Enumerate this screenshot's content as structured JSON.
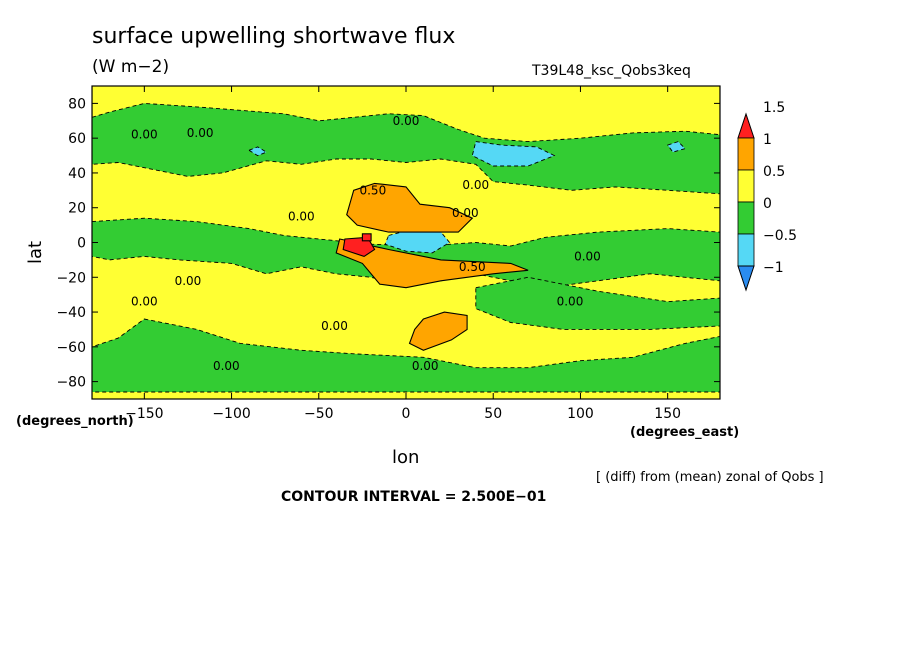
{
  "chart_data": {
    "type": "heatmap",
    "title": "surface upwelling shortwave flux",
    "units": "(W m−2)",
    "run_name": "T39L48_ksc_Qobs3keq",
    "xlabel": "lon",
    "ylabel": "lat",
    "x_units_label": "(degrees_east)",
    "y_units_label": "(degrees_north)",
    "xlim": [
      -180,
      180
    ],
    "ylim": [
      -90,
      90
    ],
    "x_ticks": [
      -150,
      -100,
      -50,
      0,
      50,
      100,
      150
    ],
    "y_ticks": [
      -80,
      -60,
      -40,
      -20,
      0,
      20,
      40,
      60,
      80
    ],
    "x_tick_labels": [
      "−150",
      "−100",
      "−50",
      "0",
      "50",
      "100",
      "150"
    ],
    "y_tick_labels": [
      "−80",
      "−60",
      "−40",
      "−20",
      "0",
      "20",
      "40",
      "60",
      "80"
    ],
    "note": "[ (diff) from (mean) zonal of Qobs ]",
    "contour_interval_text": "CONTOUR INTERVAL = 2.500E−01",
    "colorbar": {
      "levels": [
        -1,
        -0.5,
        0,
        0.5,
        1,
        1.5
      ],
      "level_labels": [
        "−1",
        "−0.5",
        "0",
        "0.5",
        "1",
        "1.5"
      ],
      "colors": [
        "#2a8cf0",
        "#55d8f5",
        "#33cc33",
        "#ffff33",
        "#ffa500",
        "#ff2020"
      ]
    },
    "contour_labels": [
      {
        "lon": -150,
        "lat": 62,
        "text": "0.00"
      },
      {
        "lon": -118,
        "lat": 63,
        "text": "0.00"
      },
      {
        "lon": 0,
        "lat": 70,
        "text": "0.00"
      },
      {
        "lon": -19,
        "lat": 30,
        "text": "0.50"
      },
      {
        "lon": 40,
        "lat": 33,
        "text": "0.00"
      },
      {
        "lon": 34,
        "lat": 17,
        "text": "0.00"
      },
      {
        "lon": -60,
        "lat": 15,
        "text": "0.00"
      },
      {
        "lon": 38,
        "lat": -14,
        "text": "0.50"
      },
      {
        "lon": 104,
        "lat": -8,
        "text": "0.00"
      },
      {
        "lon": -125,
        "lat": -22,
        "text": "0.00"
      },
      {
        "lon": -150,
        "lat": -34,
        "text": "0.00"
      },
      {
        "lon": 94,
        "lat": -34,
        "text": "0.00"
      },
      {
        "lon": -41,
        "lat": -48,
        "text": "0.00"
      },
      {
        "lon": 11,
        "lat": -71,
        "text": "0.00"
      },
      {
        "lon": -103,
        "lat": -71,
        "text": "0.00"
      }
    ],
    "regions": [
      {
        "level": 0,
        "poly": [
          [
            -180,
            90
          ],
          [
            180,
            90
          ],
          [
            180,
            -90
          ],
          [
            -180,
            -90
          ]
        ]
      },
      {
        "level": -0.5,
        "poly": [
          [
            -180,
            72
          ],
          [
            -170,
            75
          ],
          [
            -150,
            80
          ],
          [
            -120,
            78
          ],
          [
            -95,
            76
          ],
          [
            -70,
            74
          ],
          [
            -50,
            70
          ],
          [
            -30,
            72
          ],
          [
            -10,
            74
          ],
          [
            10,
            73
          ],
          [
            30,
            65
          ],
          [
            45,
            60
          ],
          [
            70,
            58
          ],
          [
            100,
            60
          ],
          [
            130,
            63
          ],
          [
            160,
            64
          ],
          [
            180,
            62
          ],
          [
            180,
            28
          ],
          [
            150,
            30
          ],
          [
            120,
            32
          ],
          [
            95,
            30
          ],
          [
            70,
            33
          ],
          [
            50,
            35
          ],
          [
            40,
            45
          ],
          [
            20,
            48
          ],
          [
            0,
            46
          ],
          [
            -20,
            48
          ],
          [
            -40,
            48
          ],
          [
            -60,
            45
          ],
          [
            -80,
            47
          ],
          [
            -105,
            40
          ],
          [
            -125,
            38
          ],
          [
            -150,
            43
          ],
          [
            -165,
            46
          ],
          [
            -180,
            45
          ]
        ]
      },
      {
        "level": -0.5,
        "poly": [
          [
            -180,
            12
          ],
          [
            -150,
            14
          ],
          [
            -120,
            12
          ],
          [
            -90,
            8
          ],
          [
            -70,
            4
          ],
          [
            -50,
            2
          ],
          [
            -20,
            -1
          ],
          [
            10,
            -2
          ],
          [
            40,
            0
          ],
          [
            60,
            -2
          ],
          [
            80,
            3
          ],
          [
            110,
            6
          ],
          [
            150,
            8
          ],
          [
            180,
            6
          ],
          [
            180,
            -22
          ],
          [
            160,
            -20
          ],
          [
            140,
            -18
          ],
          [
            110,
            -22
          ],
          [
            80,
            -26
          ],
          [
            60,
            -22
          ],
          [
            40,
            -18
          ],
          [
            20,
            -22
          ],
          [
            0,
            -25
          ],
          [
            -20,
            -20
          ],
          [
            -40,
            -18
          ],
          [
            -60,
            -14
          ],
          [
            -80,
            -18
          ],
          [
            -100,
            -12
          ],
          [
            -130,
            -10
          ],
          [
            -150,
            -8
          ],
          [
            -170,
            -10
          ],
          [
            -180,
            -8
          ]
        ]
      },
      {
        "level": -0.5,
        "poly": [
          [
            -150,
            -44
          ],
          [
            -120,
            -50
          ],
          [
            -95,
            -58
          ],
          [
            -60,
            -62
          ],
          [
            -30,
            -64
          ],
          [
            10,
            -66
          ],
          [
            40,
            -72
          ],
          [
            70,
            -72
          ],
          [
            100,
            -68
          ],
          [
            130,
            -66
          ],
          [
            160,
            -58
          ],
          [
            180,
            -54
          ],
          [
            180,
            -86
          ],
          [
            -180,
            -86
          ],
          [
            -180,
            -60
          ],
          [
            -165,
            -55
          ]
        ]
      },
      {
        "level": -0.5,
        "poly": [
          [
            40,
            -26
          ],
          [
            70,
            -20
          ],
          [
            110,
            -28
          ],
          [
            150,
            -34
          ],
          [
            180,
            -32
          ],
          [
            180,
            -48
          ],
          [
            140,
            -50
          ],
          [
            90,
            -50
          ],
          [
            60,
            -46
          ],
          [
            40,
            -38
          ]
        ]
      },
      {
        "level": -1,
        "poly": [
          [
            40,
            58
          ],
          [
            55,
            56
          ],
          [
            75,
            55
          ],
          [
            85,
            50
          ],
          [
            70,
            44
          ],
          [
            50,
            44
          ],
          [
            38,
            50
          ]
        ]
      },
      {
        "level": -1,
        "poly": [
          [
            -10,
            4
          ],
          [
            5,
            8
          ],
          [
            20,
            6
          ],
          [
            25,
            0
          ],
          [
            15,
            -6
          ],
          [
            0,
            -5
          ],
          [
            -12,
            -1
          ]
        ]
      },
      {
        "level": -1,
        "poly": [
          [
            -90,
            53
          ],
          [
            -85,
            55
          ],
          [
            -80,
            52
          ],
          [
            -85,
            50
          ]
        ]
      },
      {
        "level": -1,
        "poly": [
          [
            150,
            56
          ],
          [
            156,
            58
          ],
          [
            160,
            54
          ],
          [
            153,
            52
          ]
        ]
      },
      {
        "level": 0.5,
        "poly": [
          [
            -30,
            30
          ],
          [
            -18,
            34
          ],
          [
            0,
            32
          ],
          [
            8,
            22
          ],
          [
            25,
            20
          ],
          [
            38,
            14
          ],
          [
            30,
            6
          ],
          [
            10,
            6
          ],
          [
            -10,
            6
          ],
          [
            -28,
            10
          ],
          [
            -34,
            16
          ]
        ]
      },
      {
        "level": 0.5,
        "poly": [
          [
            -38,
            2
          ],
          [
            -10,
            -4
          ],
          [
            20,
            -10
          ],
          [
            60,
            -12
          ],
          [
            70,
            -16
          ],
          [
            50,
            -18
          ],
          [
            20,
            -22
          ],
          [
            0,
            -26
          ],
          [
            -15,
            -24
          ],
          [
            -25,
            -12
          ],
          [
            -40,
            -6
          ]
        ]
      },
      {
        "level": 0.5,
        "poly": [
          [
            10,
            -44
          ],
          [
            22,
            -40
          ],
          [
            35,
            -42
          ],
          [
            35,
            -50
          ],
          [
            26,
            -56
          ],
          [
            10,
            -62
          ],
          [
            2,
            -58
          ],
          [
            5,
            -50
          ]
        ]
      },
      {
        "level": 1,
        "poly": [
          [
            -35,
            2
          ],
          [
            -22,
            3
          ],
          [
            -18,
            -4
          ],
          [
            -24,
            -8
          ],
          [
            -36,
            -4
          ]
        ]
      },
      {
        "level": 1,
        "poly": [
          [
            -25,
            5
          ],
          [
            -20,
            5
          ],
          [
            -20,
            1
          ],
          [
            -25,
            1
          ]
        ]
      }
    ]
  }
}
